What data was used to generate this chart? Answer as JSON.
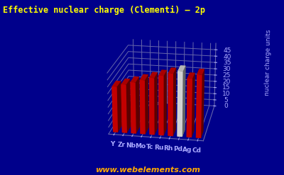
{
  "title": "Effective nuclear charge (Clementi) – 2p",
  "ylabel": "nuclear charge units",
  "elements": [
    "Y",
    "Zr",
    "Nb",
    "Mo",
    "Tc",
    "Ru",
    "Rh",
    "Pd",
    "Ag",
    "Cd"
  ],
  "values": [
    34.0,
    36.0,
    38.0,
    40.0,
    42.0,
    44.0,
    46.0,
    48.0,
    43.18,
    46.36
  ],
  "bar_colors": [
    "#dd0000",
    "#dd0000",
    "#dd0000",
    "#dd0000",
    "#dd0000",
    "#dd0000",
    "#dd0000",
    "#eeeeee",
    "#dd0000",
    "#dd0000"
  ],
  "bar_colors_dark": [
    "#880000",
    "#880000",
    "#880000",
    "#880000",
    "#880000",
    "#880000",
    "#880000",
    "#aaaaaa",
    "#880000",
    "#880000"
  ],
  "bg_color": "#00008b",
  "title_color": "#ffff00",
  "ylabel_color": "#aaaaff",
  "tick_color": "#aaaaff",
  "grid_color": "#6666aa",
  "website": "www.webelements.com",
  "website_color": "#ffaa00",
  "zlim": [
    0,
    50
  ],
  "zticks": [
    0,
    5,
    10,
    15,
    20,
    25,
    30,
    35,
    40,
    45
  ],
  "elev": 20,
  "azim": -80,
  "bar_width": 0.55,
  "bar_depth": 0.3
}
